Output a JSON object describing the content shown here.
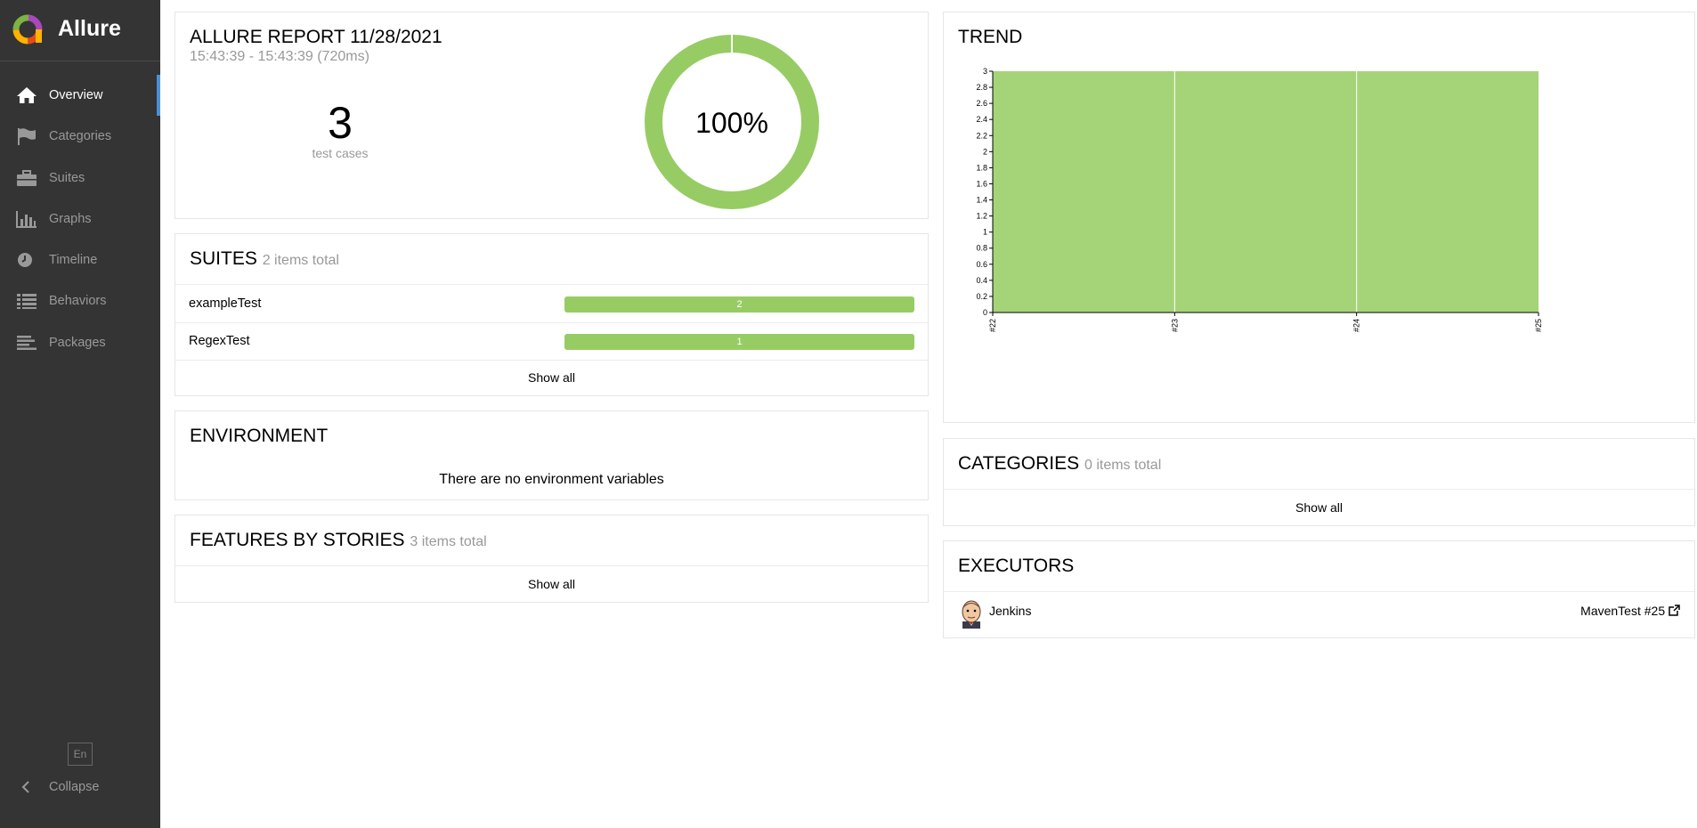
{
  "app": {
    "name": "Allure"
  },
  "sidebar": {
    "items": [
      {
        "label": "Overview",
        "icon": "home-icon",
        "active": true
      },
      {
        "label": "Categories",
        "icon": "flag-icon"
      },
      {
        "label": "Suites",
        "icon": "briefcase-icon"
      },
      {
        "label": "Graphs",
        "icon": "bar-chart-icon"
      },
      {
        "label": "Timeline",
        "icon": "clock-icon"
      },
      {
        "label": "Behaviors",
        "icon": "list-icon"
      },
      {
        "label": "Packages",
        "icon": "align-left-icon"
      }
    ],
    "language": "En",
    "collapse_label": "Collapse"
  },
  "summary": {
    "title": "ALLURE REPORT 11/28/2021",
    "time": "15:43:39 - 15:43:39 (720ms)",
    "count": "3",
    "count_label": "test cases",
    "percent": "100%",
    "pass_color": "#97cc64"
  },
  "suites": {
    "title": "SUITES",
    "total": "2 items total",
    "rows": [
      {
        "name": "exampleTest",
        "value": "2"
      },
      {
        "name": "RegexTest",
        "value": "1"
      }
    ],
    "show_all": "Show all"
  },
  "environment": {
    "title": "ENVIRONMENT",
    "message": "There are no environment variables"
  },
  "features": {
    "title": "FEATURES BY STORIES",
    "total": "3 items total",
    "show_all": "Show all"
  },
  "trend": {
    "title": "TREND",
    "chart_data": {
      "type": "area",
      "x": [
        "#22",
        "#23",
        "#24",
        "#25"
      ],
      "series": [
        {
          "values": [
            3,
            3,
            3,
            3
          ]
        }
      ],
      "ylim": [
        0,
        3
      ],
      "yticks": [
        "0",
        "0.2",
        "0.4",
        "0.6",
        "0.8",
        "1",
        "1.2",
        "1.4",
        "1.6",
        "1.8",
        "2",
        "2.2",
        "2.4",
        "2.6",
        "2.8",
        "3"
      ],
      "color": "#a5d478",
      "grid": false
    }
  },
  "categories": {
    "title": "CATEGORIES",
    "total": "0 items total",
    "show_all": "Show all"
  },
  "executors": {
    "title": "EXECUTORS",
    "name": "Jenkins",
    "build": "MavenTest #25"
  }
}
